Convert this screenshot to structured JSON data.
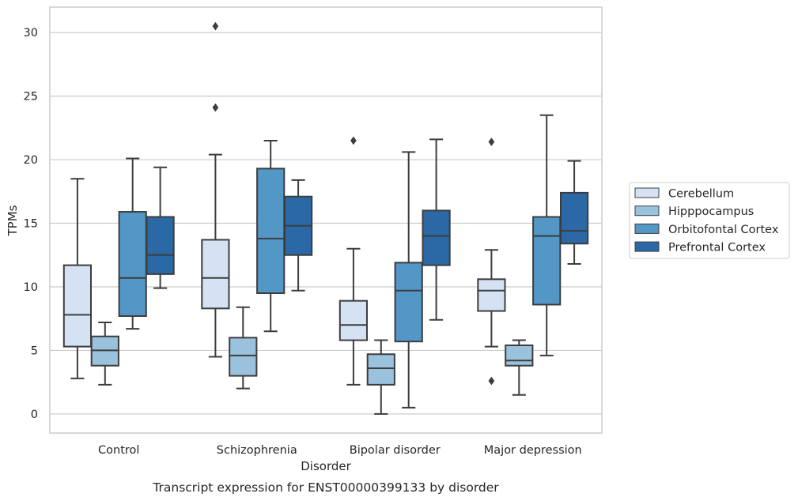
{
  "chart_data": {
    "type": "box",
    "caption": "Transcript expression for ENST00000399133 by disorder",
    "xlabel": "Disorder",
    "ylabel": "TPMs",
    "ylim": [
      -1.5,
      32
    ],
    "yticks": [
      0,
      5,
      10,
      15,
      20,
      25,
      30
    ],
    "grid": "horizontal",
    "legend_position": "right",
    "categories": [
      "Control",
      "Schizophrenia",
      "Bipolar disorder",
      "Major depression"
    ],
    "series": [
      {
        "name": "Cerebellum",
        "color": "#d4e2f3",
        "boxes": [
          {
            "whisker_low": 2.8,
            "q1": 5.3,
            "median": 7.8,
            "q3": 11.7,
            "whisker_high": 18.5,
            "outliers": []
          },
          {
            "whisker_low": 4.5,
            "q1": 8.3,
            "median": 10.7,
            "q3": 13.7,
            "whisker_high": 20.4,
            "outliers": [
              30.5,
              24.1
            ]
          },
          {
            "whisker_low": 2.3,
            "q1": 5.8,
            "median": 7.0,
            "q3": 8.9,
            "whisker_high": 13.0,
            "outliers": [
              21.5
            ]
          },
          {
            "whisker_low": 5.3,
            "q1": 8.1,
            "median": 9.7,
            "q3": 10.6,
            "whisker_high": 12.9,
            "outliers": [
              21.4,
              2.6
            ]
          }
        ]
      },
      {
        "name": "Hipppocampus",
        "color": "#9ac2dd",
        "boxes": [
          {
            "whisker_low": 2.3,
            "q1": 3.8,
            "median": 5.0,
            "q3": 6.1,
            "whisker_high": 7.2,
            "outliers": []
          },
          {
            "whisker_low": 2.0,
            "q1": 3.0,
            "median": 4.6,
            "q3": 6.0,
            "whisker_high": 8.4,
            "outliers": []
          },
          {
            "whisker_low": 0.0,
            "q1": 2.3,
            "median": 3.6,
            "q3": 4.7,
            "whisker_high": 5.8,
            "outliers": []
          },
          {
            "whisker_low": 1.5,
            "q1": 3.8,
            "median": 4.2,
            "q3": 5.4,
            "whisker_high": 5.8,
            "outliers": []
          }
        ]
      },
      {
        "name": "Orbitofontal Cortex",
        "color": "#5297c6",
        "boxes": [
          {
            "whisker_low": 6.7,
            "q1": 7.7,
            "median": 10.7,
            "q3": 15.9,
            "whisker_high": 20.1,
            "outliers": []
          },
          {
            "whisker_low": 6.5,
            "q1": 9.5,
            "median": 13.8,
            "q3": 19.3,
            "whisker_high": 21.5,
            "outliers": []
          },
          {
            "whisker_low": 0.5,
            "q1": 5.7,
            "median": 9.7,
            "q3": 11.9,
            "whisker_high": 20.6,
            "outliers": []
          },
          {
            "whisker_low": 4.6,
            "q1": 8.6,
            "median": 14.0,
            "q3": 15.5,
            "whisker_high": 23.5,
            "outliers": []
          }
        ]
      },
      {
        "name": "Prefrontal Cortex",
        "color": "#2b68a6",
        "boxes": [
          {
            "whisker_low": 9.9,
            "q1": 11.0,
            "median": 12.5,
            "q3": 15.5,
            "whisker_high": 19.4,
            "outliers": []
          },
          {
            "whisker_low": 9.7,
            "q1": 12.5,
            "median": 14.8,
            "q3": 17.1,
            "whisker_high": 18.4,
            "outliers": []
          },
          {
            "whisker_low": 7.4,
            "q1": 11.7,
            "median": 14.0,
            "q3": 16.0,
            "whisker_high": 21.6,
            "outliers": []
          },
          {
            "whisker_low": 11.8,
            "q1": 13.4,
            "median": 14.4,
            "q3": 17.4,
            "whisker_high": 19.9,
            "outliers": []
          }
        ]
      }
    ]
  }
}
